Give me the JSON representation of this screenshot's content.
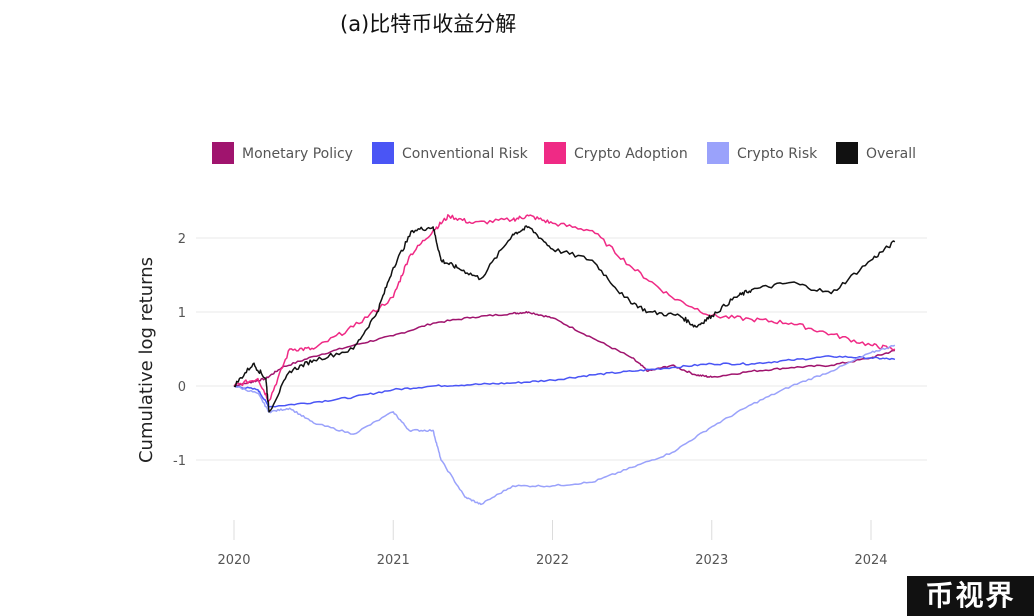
{
  "title": "(a)比特币收益分解",
  "watermark": "币视界",
  "chart_data": {
    "type": "line",
    "ylabel": "Cumulative log returns",
    "xlim": [
      2020,
      2024.4
    ],
    "ylim": [
      -2,
      2.4
    ],
    "x_ticks": [
      "2020",
      "2021",
      "2022",
      "2023",
      "2024"
    ],
    "y_ticks": [
      "2",
      "1",
      "0",
      "-1"
    ],
    "grid": "horizontal",
    "legend_position": "top",
    "series": [
      {
        "name": "Monetary Policy",
        "color": "#a0146e",
        "x": [
          2020.0,
          2020.1,
          2020.2,
          2020.3,
          2020.5,
          2020.75,
          2021.0,
          2021.25,
          2021.5,
          2021.75,
          2021.85,
          2022.0,
          2022.25,
          2022.5,
          2022.6,
          2022.75,
          2022.9,
          2023.0,
          2023.25,
          2023.5,
          2023.75,
          2024.0,
          2024.15
        ],
        "values": [
          0.0,
          0.05,
          0.1,
          0.25,
          0.4,
          0.55,
          0.68,
          0.85,
          0.93,
          0.98,
          1.0,
          0.92,
          0.65,
          0.38,
          0.2,
          0.28,
          0.15,
          0.12,
          0.2,
          0.25,
          0.28,
          0.38,
          0.48
        ]
      },
      {
        "name": "Conventional Risk",
        "color": "#4a55f5",
        "x": [
          2020.0,
          2020.15,
          2020.22,
          2020.5,
          2020.75,
          2021.0,
          2021.25,
          2021.5,
          2021.75,
          2022.0,
          2022.25,
          2022.5,
          2022.75,
          2023.0,
          2023.25,
          2023.5,
          2023.75,
          2024.0,
          2024.15
        ],
        "values": [
          0.0,
          -0.05,
          -0.28,
          -0.22,
          -0.15,
          -0.05,
          0.0,
          0.02,
          0.04,
          0.08,
          0.15,
          0.2,
          0.25,
          0.3,
          0.3,
          0.35,
          0.4,
          0.38,
          0.36
        ]
      },
      {
        "name": "Crypto Adoption",
        "color": "#ef2a85",
        "x": [
          2020.0,
          2020.15,
          2020.22,
          2020.35,
          2020.5,
          2020.75,
          2021.0,
          2021.1,
          2021.25,
          2021.35,
          2021.5,
          2021.75,
          2021.85,
          2022.0,
          2022.25,
          2022.5,
          2022.75,
          2023.0,
          2023.25,
          2023.5,
          2023.75,
          2024.0,
          2024.15
        ],
        "values": [
          0.0,
          0.1,
          -0.2,
          0.5,
          0.5,
          0.8,
          1.2,
          1.75,
          2.1,
          2.3,
          2.2,
          2.25,
          2.3,
          2.2,
          2.1,
          1.6,
          1.2,
          0.95,
          0.9,
          0.85,
          0.7,
          0.55,
          0.5
        ]
      },
      {
        "name": "Crypto Risk",
        "color": "#9aa2fb",
        "x": [
          2020.0,
          2020.15,
          2020.22,
          2020.35,
          2020.5,
          2020.75,
          2021.0,
          2021.1,
          2021.25,
          2021.3,
          2021.45,
          2021.55,
          2021.75,
          2022.0,
          2022.25,
          2022.5,
          2022.75,
          2023.0,
          2023.25,
          2023.5,
          2023.75,
          2024.0,
          2024.15
        ],
        "values": [
          0.0,
          -0.1,
          -0.35,
          -0.3,
          -0.5,
          -0.65,
          -0.35,
          -0.6,
          -0.6,
          -1.0,
          -1.5,
          -1.6,
          -1.35,
          -1.35,
          -1.3,
          -1.1,
          -0.9,
          -0.55,
          -0.25,
          0.0,
          0.2,
          0.45,
          0.55
        ]
      },
      {
        "name": "Overall",
        "color": "#111111",
        "x": [
          2020.0,
          2020.12,
          2020.2,
          2020.22,
          2020.35,
          2020.5,
          2020.75,
          2020.9,
          2021.0,
          2021.12,
          2021.25,
          2021.3,
          2021.4,
          2021.55,
          2021.75,
          2021.85,
          2022.0,
          2022.25,
          2022.45,
          2022.6,
          2022.8,
          2022.9,
          2023.0,
          2023.15,
          2023.25,
          2023.5,
          2023.75,
          2024.0,
          2024.15
        ],
        "values": [
          0.0,
          0.3,
          0.1,
          -0.35,
          0.2,
          0.35,
          0.5,
          1.0,
          1.6,
          2.1,
          2.15,
          1.7,
          1.6,
          1.45,
          2.05,
          2.15,
          1.85,
          1.7,
          1.2,
          1.0,
          0.95,
          0.8,
          0.95,
          1.2,
          1.3,
          1.4,
          1.25,
          1.7,
          1.95
        ]
      }
    ]
  }
}
